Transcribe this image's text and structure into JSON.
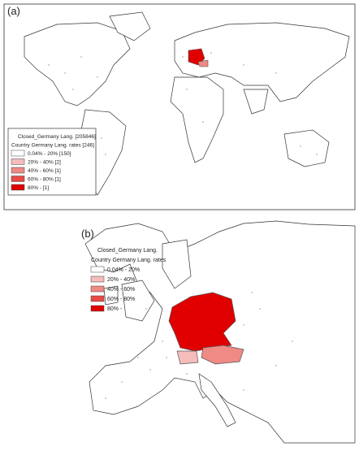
{
  "panels": [
    {
      "label": "(a)",
      "legend_title": "Closed_Germany Lang. [205846]",
      "legend_subtitle": "Country Germany Lang. rates [246]",
      "items": [
        {
          "label": "0.04% - 20% [150]",
          "color": "#ffffff"
        },
        {
          "label": "20% - 40% [2]",
          "color": "#f5bcbc"
        },
        {
          "label": "40% - 60% [1]",
          "color": "#ef8a84"
        },
        {
          "label": "60% - 80% [1]",
          "color": "#e84a44"
        },
        {
          "label": "80% - [1]",
          "color": "#e00000"
        }
      ]
    },
    {
      "label": "(b)",
      "legend_title": "Closed_Germany Lang.",
      "legend_subtitle": "Country Germany Lang. rates",
      "items": [
        {
          "label": "0.04% - 20%",
          "color": "#ffffff"
        },
        {
          "label": "20% - 40%",
          "color": "#f5bcbc"
        },
        {
          "label": "40% - 60%",
          "color": "#ef8a84"
        },
        {
          "label": "60% - 80%",
          "color": "#e84a44"
        },
        {
          "label": "80% -",
          "color": "#e00000"
        }
      ]
    }
  ]
}
